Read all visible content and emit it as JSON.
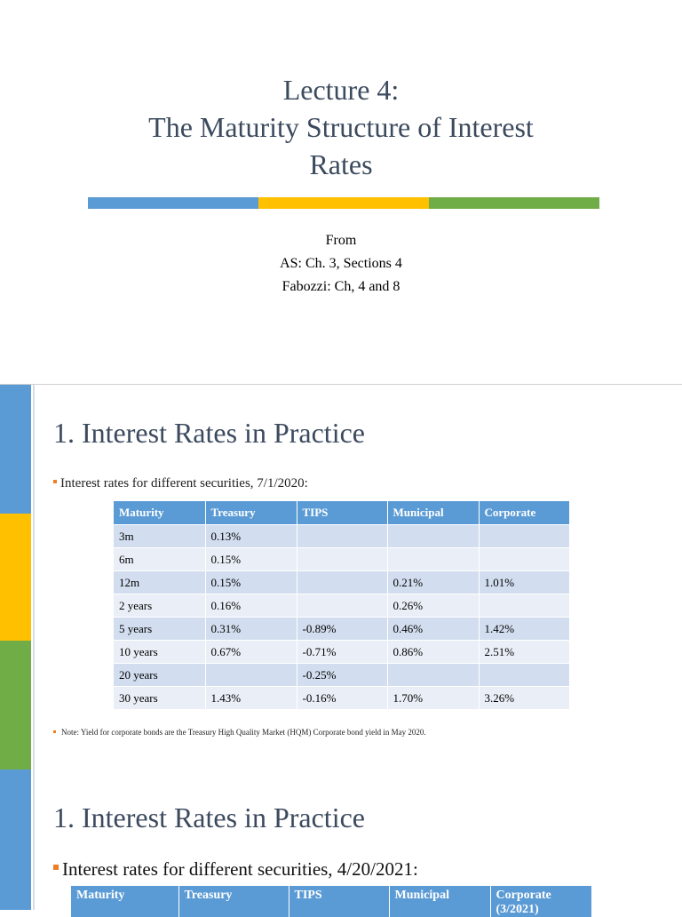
{
  "slide1": {
    "title_lines": [
      "Lecture 4:",
      "The Maturity Structure of Interest",
      "Rates"
    ],
    "bar_colors": [
      "#5b9bd5",
      "#ffc000",
      "#70ad47"
    ],
    "from_lines": [
      "From",
      "AS:  Ch. 3, Sections 4",
      "Fabozzi: Ch, 4 and 8"
    ]
  },
  "strip_colors": [
    "#5b9bd5",
    "#ffc000",
    "#70ad47",
    "#5b9bd5"
  ],
  "slide2": {
    "title": "1. Interest Rates in Practice",
    "bullet": "Interest rates for different securities, 7/1/2020:",
    "table": {
      "headers": [
        "Maturity",
        "Treasury",
        "TIPS",
        "Municipal",
        "Corporate"
      ],
      "rows": [
        [
          "3m",
          "0.13%",
          "",
          "",
          ""
        ],
        [
          "6m",
          "0.15%",
          "",
          "",
          ""
        ],
        [
          "12m",
          "0.15%",
          "",
          "0.21%",
          "1.01%"
        ],
        [
          "2 years",
          "0.16%",
          "",
          "0.26%",
          ""
        ],
        [
          "5 years",
          "0.31%",
          "-0.89%",
          "0.46%",
          "1.42%"
        ],
        [
          "10 years",
          "0.67%",
          "-0.71%",
          "0.86%",
          "2.51%"
        ],
        [
          "20 years",
          "",
          "-0.25%",
          "",
          ""
        ],
        [
          "30 years",
          "1.43%",
          "-0.16%",
          "1.70%",
          "3.26%"
        ]
      ]
    },
    "note": "Note: Yield for corporate bonds are the Treasury High Quality Market (HQM) Corporate bond yield in May 2020."
  },
  "slide3": {
    "title": "1. Interest Rates in Practice",
    "bullet": "Interest rates for different securities, 4/20/2021:",
    "table": {
      "headers": [
        "Maturity",
        "Treasury",
        "TIPS",
        "Municipal",
        "Corporate (3/2021)"
      ]
    }
  }
}
